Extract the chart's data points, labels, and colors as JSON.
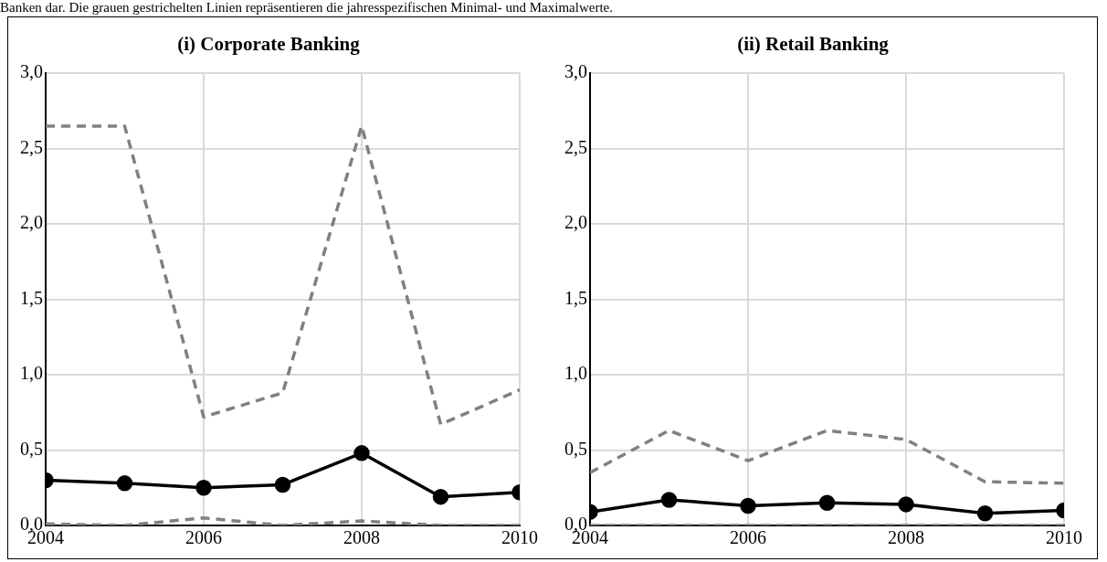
{
  "chart_data": [
    {
      "type": "line",
      "title": "(i) Corporate Banking",
      "annotations": [
        "Banken dar. Die grauen gestrichelten Linien repräsentieren die jahresspezifischen Minimal- und Maximalwerte."
      ],
      "x": [
        2004,
        2005,
        2006,
        2007,
        2008,
        2009,
        2010
      ],
      "xlim": [
        2004,
        2010
      ],
      "xticks": [
        2004,
        2006,
        2008,
        2010
      ],
      "ylim": [
        0,
        3
      ],
      "yticks": [
        {
          "value": 0,
          "label": "0,0"
        },
        {
          "value": 0.5,
          "label": "0,5"
        },
        {
          "value": 1,
          "label": "1,0"
        },
        {
          "value": 1.5,
          "label": "1,5"
        },
        {
          "value": 2,
          "label": "2,0"
        },
        {
          "value": 2.5,
          "label": "2,5"
        },
        {
          "value": 3,
          "label": "3,0"
        }
      ],
      "grid": true,
      "legend": false,
      "series": [
        {
          "color": "#808080",
          "line_style": "dashed",
          "marker": "none",
          "values": [
            2.65,
            2.65,
            0.72,
            0.88,
            2.65,
            0.67,
            0.9
          ]
        },
        {
          "color": "#808080",
          "line_style": "dashed",
          "marker": "none",
          "values": [
            0.01,
            0,
            0.05,
            0,
            0.03,
            0,
            0
          ]
        },
        {
          "color": "#000000",
          "line_style": "solid",
          "marker": "circle",
          "values": [
            0.3,
            0.28,
            0.25,
            0.27,
            0.48,
            0.19,
            0.22
          ]
        }
      ]
    },
    {
      "type": "line",
      "title": "(ii) Retail Banking",
      "x": [
        2004,
        2005,
        2006,
        2007,
        2008,
        2009,
        2010
      ],
      "xlim": [
        2004,
        2010
      ],
      "xticks": [
        2004,
        2006,
        2008,
        2010
      ],
      "ylim": [
        0,
        3
      ],
      "yticks": [
        {
          "value": 0,
          "label": "0,0"
        },
        {
          "value": 0.5,
          "label": "0,5"
        },
        {
          "value": 1,
          "label": "1,0"
        },
        {
          "value": 1.5,
          "label": "1,5"
        },
        {
          "value": 2,
          "label": "2,0"
        },
        {
          "value": 2.5,
          "label": "2,5"
        },
        {
          "value": 3,
          "label": "3,0"
        }
      ],
      "grid": true,
      "legend": false,
      "series": [
        {
          "color": "#808080",
          "line_style": "dashed",
          "marker": "none",
          "values": [
            0.35,
            0.63,
            0.43,
            0.63,
            0.57,
            0.29,
            0.28
          ]
        },
        {
          "color": "#808080",
          "line_style": "dashed",
          "marker": "none",
          "values": [
            0,
            0,
            0,
            0,
            0,
            0,
            0
          ]
        },
        {
          "color": "#000000",
          "line_style": "solid",
          "marker": "circle",
          "values": [
            0.09,
            0.17,
            0.13,
            0.15,
            0.14,
            0.08,
            0.1
          ]
        }
      ]
    }
  ]
}
